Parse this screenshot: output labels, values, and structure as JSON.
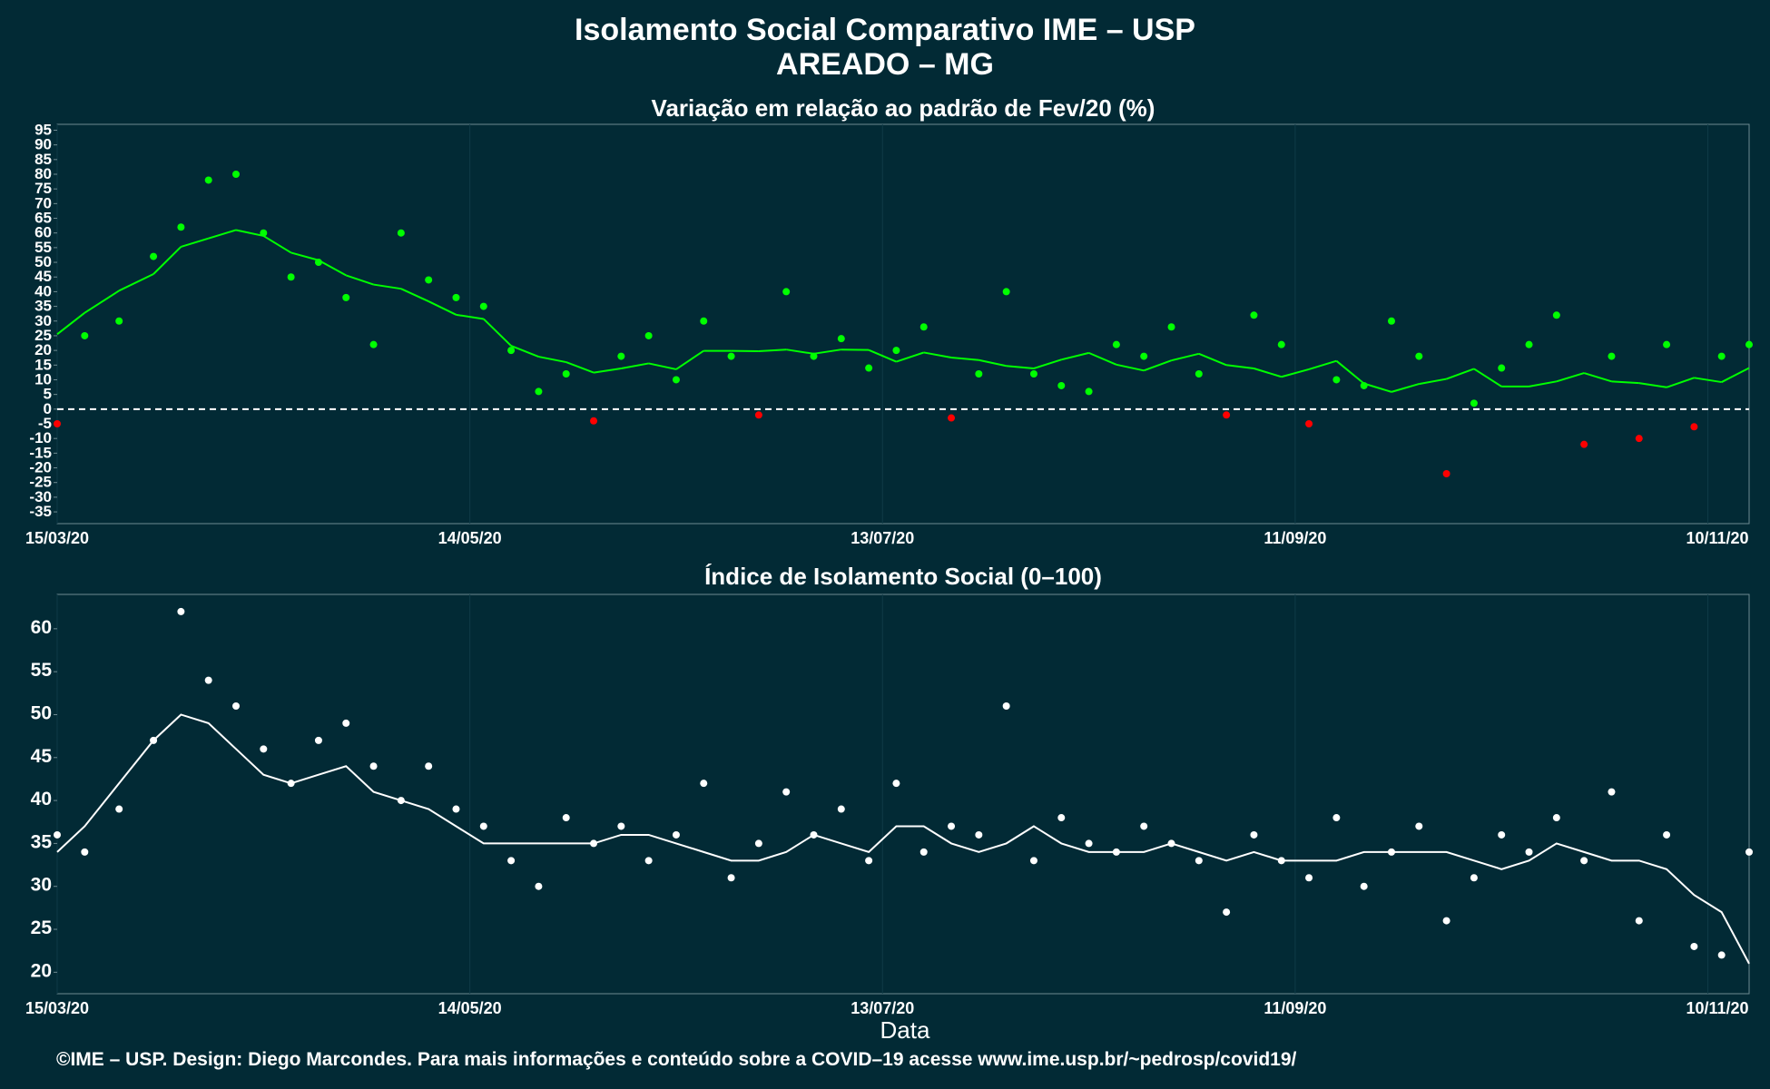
{
  "header": {
    "title": "Isolamento Social Comparativo IME – USP",
    "subtitle": "AREADO – MG"
  },
  "footer": "©IME – USP. Design: Diego Marcondes. Para mais informações e conteúdo sobre a COVID–19 acesse www.ime.usp.br/~pedrosp/covid19/",
  "colors": {
    "background": "#022a35",
    "positive": "#00ff00",
    "negative": "#ff0000",
    "index": "#ffffff"
  },
  "chart_data": [
    {
      "type": "scatter",
      "title": "Variação em relação ao padrão de Fev/20 (%)",
      "xlabel": "",
      "ylabel": "",
      "date_ticks": [
        "15/03/20",
        "14/05/20",
        "13/07/20",
        "11/09/20",
        "10/11/20"
      ],
      "x_range": [
        "15/03/20",
        "16/11/20"
      ],
      "ylim": [
        -39,
        97
      ],
      "yticks": [
        95,
        90,
        85,
        80,
        75,
        70,
        65,
        60,
        55,
        50,
        45,
        40,
        35,
        30,
        25,
        20,
        15,
        10,
        5,
        0,
        -5,
        -10,
        -15,
        -20,
        -25,
        -30,
        -35
      ],
      "reference_line": 0,
      "series": [
        {
          "type": "scatter",
          "x": [
            "15/03/20",
            "19/03/20",
            "24/03/20",
            "29/03/20",
            "02/04/20",
            "06/04/20",
            "10/04/20",
            "14/04/20",
            "18/04/20",
            "22/04/20",
            "26/04/20",
            "30/04/20",
            "04/05/20",
            "08/05/20",
            "12/05/20",
            "16/05/20",
            "20/05/20",
            "24/05/20",
            "28/05/20",
            "01/06/20",
            "05/06/20",
            "09/06/20",
            "13/06/20",
            "17/06/20",
            "21/06/20",
            "25/06/20",
            "29/06/20",
            "03/07/20",
            "07/07/20",
            "11/07/20",
            "15/07/20",
            "19/07/20",
            "23/07/20",
            "27/07/20",
            "31/07/20",
            "04/08/20",
            "08/08/20",
            "12/08/20",
            "16/08/20",
            "20/08/20",
            "24/08/20",
            "28/08/20",
            "01/09/20",
            "05/09/20",
            "09/09/20",
            "13/09/20",
            "17/09/20",
            "21/09/20",
            "25/09/20",
            "29/09/20",
            "03/10/20",
            "07/10/20",
            "11/10/20",
            "15/10/20",
            "19/10/20",
            "23/10/20",
            "27/10/20",
            "31/10/20",
            "04/11/20",
            "08/11/20",
            "12/11/20",
            "16/11/20"
          ],
          "values": [
            -5,
            25,
            30,
            52,
            62,
            78,
            80,
            60,
            45,
            50,
            38,
            22,
            60,
            44,
            38,
            35,
            20,
            6,
            12,
            -4,
            18,
            25,
            10,
            30,
            18,
            -2,
            40,
            18,
            24,
            14,
            20,
            28,
            -3,
            12,
            40,
            12,
            8,
            6,
            22,
            18,
            28,
            12,
            -2,
            32,
            22,
            -5,
            10,
            8,
            30,
            18,
            -22,
            2,
            14,
            22,
            32,
            -12,
            18,
            -10,
            22,
            -6,
            18,
            22
          ],
          "colors": [
            "negative",
            "positive"
          ]
        }
      ]
    },
    {
      "type": "line",
      "title": "Índice de Isolamento Social (0–100)",
      "xlabel": "Data",
      "ylabel": "",
      "date_ticks": [
        "15/03/20",
        "14/05/20",
        "13/07/20",
        "11/09/20",
        "10/11/20"
      ],
      "x_range": [
        "15/03/20",
        "16/11/20"
      ],
      "ylim": [
        17.5,
        64
      ],
      "yticks": [
        60,
        55,
        50,
        45,
        40,
        35,
        30,
        25,
        20
      ],
      "series": [
        {
          "name": "",
          "type": "scatter",
          "x": [
            "15/03/20",
            "19/03/20",
            "24/03/20",
            "29/03/20",
            "02/04/20",
            "06/04/20",
            "10/04/20",
            "14/04/20",
            "18/04/20",
            "22/04/20",
            "26/04/20",
            "30/04/20",
            "04/05/20",
            "08/05/20",
            "12/05/20",
            "16/05/20",
            "20/05/20",
            "24/05/20",
            "28/05/20",
            "01/06/20",
            "05/06/20",
            "09/06/20",
            "13/06/20",
            "17/06/20",
            "21/06/20",
            "25/06/20",
            "29/06/20",
            "03/07/20",
            "07/07/20",
            "11/07/20",
            "15/07/20",
            "19/07/20",
            "23/07/20",
            "27/07/20",
            "31/07/20",
            "04/08/20",
            "08/08/20",
            "12/08/20",
            "16/08/20",
            "20/08/20",
            "24/08/20",
            "28/08/20",
            "01/09/20",
            "05/09/20",
            "09/09/20",
            "13/09/20",
            "17/09/20",
            "21/09/20",
            "25/09/20",
            "29/09/20",
            "03/10/20",
            "07/10/20",
            "11/10/20",
            "15/10/20",
            "19/10/20",
            "23/10/20",
            "27/10/20",
            "31/10/20",
            "04/11/20",
            "08/11/20",
            "12/11/20",
            "16/11/20"
          ],
          "values": [
            36,
            34,
            39,
            47,
            62,
            54,
            51,
            46,
            42,
            47,
            49,
            44,
            40,
            44,
            39,
            37,
            33,
            30,
            38,
            35,
            37,
            33,
            36,
            42,
            31,
            35,
            41,
            36,
            39,
            33,
            42,
            34,
            37,
            36,
            51,
            33,
            38,
            35,
            34,
            37,
            35,
            33,
            27,
            36,
            33,
            31,
            38,
            30,
            34,
            37,
            26,
            31,
            36,
            34,
            38,
            33,
            41,
            26,
            36,
            23,
            22,
            34
          ]
        },
        {
          "name": "",
          "type": "line",
          "x": [
            "15/03/20",
            "19/03/20",
            "24/03/20",
            "29/03/20",
            "02/04/20",
            "06/04/20",
            "10/04/20",
            "14/04/20",
            "18/04/20",
            "22/04/20",
            "26/04/20",
            "30/04/20",
            "04/05/20",
            "08/05/20",
            "12/05/20",
            "16/05/20",
            "20/05/20",
            "24/05/20",
            "28/05/20",
            "01/06/20",
            "05/06/20",
            "09/06/20",
            "13/06/20",
            "17/06/20",
            "21/06/20",
            "25/06/20",
            "29/06/20",
            "03/07/20",
            "07/07/20",
            "11/07/20",
            "15/07/20",
            "19/07/20",
            "23/07/20",
            "27/07/20",
            "31/07/20",
            "04/08/20",
            "08/08/20",
            "12/08/20",
            "16/08/20",
            "20/08/20",
            "24/08/20",
            "28/08/20",
            "01/09/20",
            "05/09/20",
            "09/09/20",
            "13/09/20",
            "17/09/20",
            "21/09/20",
            "25/09/20",
            "29/09/20",
            "03/10/20",
            "07/10/20",
            "11/10/20",
            "15/10/20",
            "19/10/20",
            "23/10/20",
            "27/10/20",
            "31/10/20",
            "04/11/20",
            "08/11/20",
            "12/11/20",
            "16/11/20"
          ],
          "values": [
            34,
            37,
            42,
            47,
            50,
            49,
            46,
            43,
            42,
            43,
            44,
            41,
            40,
            39,
            37,
            35,
            35,
            35,
            35,
            35,
            36,
            36,
            35,
            34,
            33,
            33,
            34,
            36,
            35,
            34,
            37,
            37,
            35,
            34,
            35,
            37,
            35,
            34,
            34,
            34,
            35,
            34,
            33,
            34,
            33,
            33,
            33,
            34,
            34,
            34,
            34,
            33,
            32,
            33,
            35,
            34,
            33,
            33,
            32,
            29,
            27,
            21
          ]
        }
      ]
    }
  ]
}
